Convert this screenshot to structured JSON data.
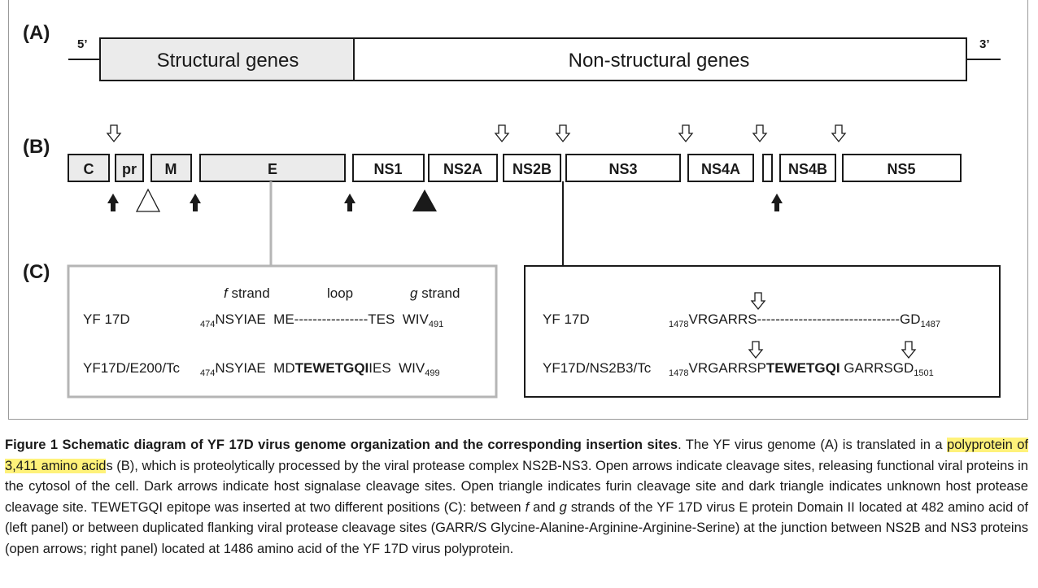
{
  "panelA": {
    "letter": "(A)",
    "five_prime": "5’",
    "three_prime": "3’",
    "structural": "Structural genes",
    "nonstructural": "Non-structural genes"
  },
  "panelB": {
    "letter": "(B)",
    "genes": [
      "C",
      "pr",
      "M",
      "E",
      "NS1",
      "NS2A",
      "NS2B",
      "NS3",
      "NS4A",
      "",
      "NS4B",
      "NS5"
    ]
  },
  "panelC": {
    "letter": "(C)",
    "left": {
      "hdr_f_italic": "f",
      "hdr_f_rest": " strand",
      "hdr_loop": "loop",
      "hdr_g_italic": "g",
      "hdr_g_rest": " strand",
      "row1_label": "YF 17D",
      "row1_sub_start": "474",
      "row1_seq": "NSYIAE  ME----------------TES  WIV",
      "row1_sub_end": "491",
      "row2_label": "YF17D/E200/Tc",
      "row2_sub_start": "474",
      "row2_seq_a": "NSYIAE  MD",
      "row2_seq_bold": "TEWETGQI",
      "row2_seq_b": "IES  WIV",
      "row2_sub_end": "499"
    },
    "right": {
      "row1_label": "YF 17D",
      "row1_sub_start": "1478",
      "row1_seq": "VRGARRS-------------------------------GD",
      "row1_sub_end": "1487",
      "row2_label": "YF17D/NS2B3/Tc",
      "row2_sub_start": "1478",
      "row2_seq_a": "VRGARRSP",
      "row2_seq_bold": "TEWETGQI",
      "row2_seq_b": " GARRSGD",
      "row2_sub_end": "1501"
    }
  },
  "caption": {
    "title": "Figure 1 Schematic diagram of YF 17D virus genome organization and the corresponding insertion sites",
    "p1": ". The YF virus genome (A) is translated in a ",
    "highlight": "polyprotein of 3,411 amino acid",
    "p2": "s (B), which is proteolytically processed by the viral protease complex NS2B-NS3. Open arrows indicate cleavage sites, releasing functional viral proteins in the cytosol of the cell. Dark arrows indicate host signalase cleavage sites. Open triangle indicates furin cleavage site and dark triangle indicates unknown host protease cleavage site. TEWETGQI epitope was inserted at two different positions (C): between ",
    "em_f": "f",
    "p3": " and ",
    "em_g": "g",
    "p4": " strands of the YF 17D virus E protein Domain II located at 482 amino acid of (left panel) or between duplicated flanking viral protease cleavage sites (GARR/S Glycine-Alanine-Arginine-Arginine-Serine) at the junction between NS2B and NS3 proteins (open arrows; right panel) located at 1486 amino acid of the YF 17D virus polyprotein."
  }
}
